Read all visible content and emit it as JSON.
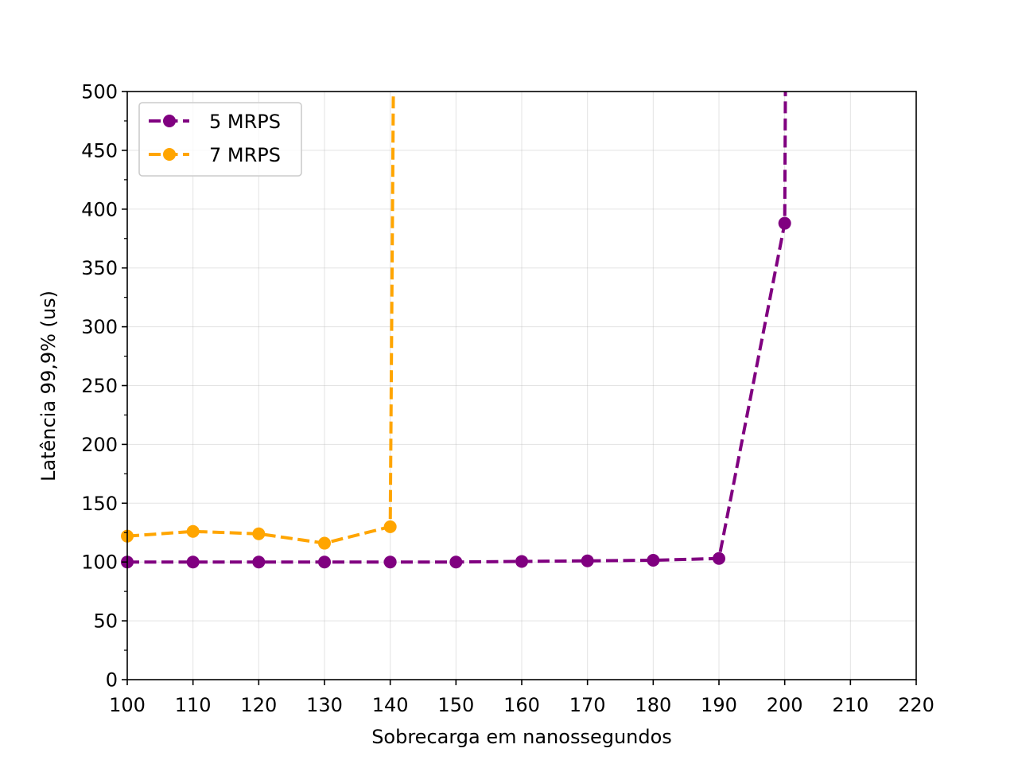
{
  "chart_data": {
    "type": "line",
    "title": "",
    "xlabel": "Sobrecarga em nanossegundos",
    "ylabel": "Latência 99,9% (us)",
    "xlim": [
      100,
      220
    ],
    "ylim": [
      0,
      500
    ],
    "x_ticks": [
      "100",
      "110",
      "120",
      "130",
      "140",
      "150",
      "160",
      "170",
      "180",
      "190",
      "200",
      "210",
      "220"
    ],
    "y_ticks": [
      "0",
      "50",
      "100",
      "150",
      "200",
      "250",
      "300",
      "350",
      "400",
      "450",
      "500"
    ],
    "grid": true,
    "legend_position": "upper-left",
    "series": [
      {
        "name": "5 MRPS",
        "color": "#800080",
        "line_style": "dashed",
        "marker": "circle",
        "points": [
          [
            100,
            100
          ],
          [
            110,
            100
          ],
          [
            120,
            100
          ],
          [
            130,
            100
          ],
          [
            140,
            100
          ],
          [
            150,
            100
          ],
          [
            160,
            100.5
          ],
          [
            170,
            101
          ],
          [
            180,
            101.5
          ],
          [
            190,
            103
          ],
          [
            200,
            388
          ]
        ],
        "extends_off_chart": true,
        "offchart_x": 200.2
      },
      {
        "name": "7 MRPS",
        "color": "#FFA500",
        "line_style": "dashed",
        "marker": "circle",
        "points": [
          [
            100,
            122
          ],
          [
            110,
            126
          ],
          [
            120,
            124
          ],
          [
            130,
            116
          ],
          [
            140,
            130
          ]
        ],
        "extends_off_chart": true,
        "offchart_x": 140.6
      }
    ]
  }
}
